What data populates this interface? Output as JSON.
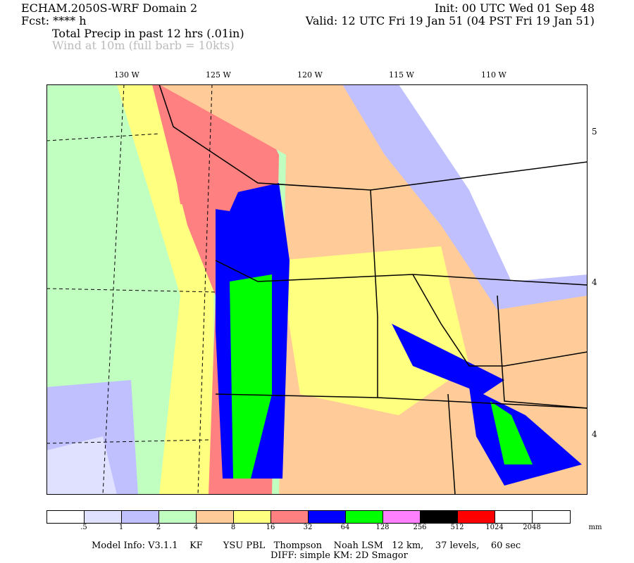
{
  "header": {
    "title": "ECHAM.2050S-WRF Domain 2",
    "init": "Init: 00 UTC Wed 01 Sep 48",
    "fcst": "Fcst: **** h",
    "valid": "Valid: 12 UTC Fri 19 Jan 51 (04 PST Fri 19 Jan 51)",
    "field1": "Total Precip in past 12 hrs (.01in)",
    "field2": "Wind at 10m (full barb = 10kts)"
  },
  "map": {
    "lon_labels": [
      "130 W",
      "125 W",
      "120 W",
      "115 W",
      "110 W"
    ],
    "lat_labels": [
      "5",
      "4",
      "4"
    ]
  },
  "legend": {
    "colors": [
      "#ffffff",
      "#e0e0ff",
      "#c0c0ff",
      "#c0ffc0",
      "#ffcc99",
      "#ffff80",
      "#ff8080",
      "#0000ff",
      "#00ff00",
      "#ff80ff",
      "#000000",
      "#ff0000",
      "#ffffff",
      "#ffffff"
    ],
    "labels": [
      ".5",
      "1",
      "2",
      "4",
      "8",
      "16",
      "32",
      "64",
      "128",
      "256",
      "512",
      "1024",
      "2048"
    ],
    "unit": "mm"
  },
  "footer": {
    "line1": "Model Info: V3.1.1    KF       YSU PBL   Thompson    Noah LSM   12 km,    37 levels,    60 sec",
    "line2": "DIFF: simple KM: 2D Smagor"
  }
}
